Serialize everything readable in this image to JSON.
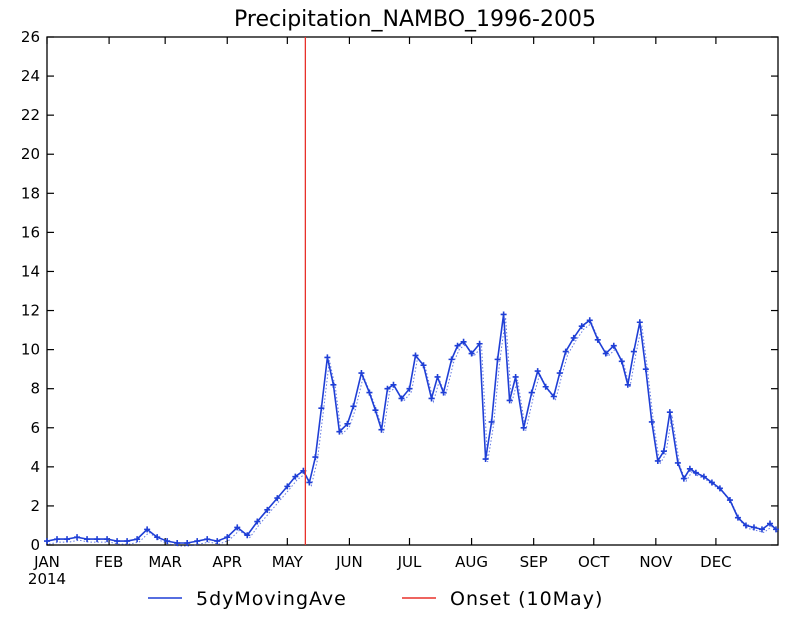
{
  "chart_data": {
    "type": "line",
    "title": "Precipitation_NAMBO_1996-2005",
    "xlabel": "",
    "ylabel": "",
    "ylim": [
      0,
      26
    ],
    "yticks": [
      0,
      2,
      4,
      6,
      8,
      10,
      12,
      14,
      16,
      18,
      20,
      22,
      24,
      26
    ],
    "xlim": [
      "2014-01-01",
      "2014-12-31"
    ],
    "x_tick_labels": [
      {
        "date": "2014-01-01",
        "label": "JAN"
      },
      {
        "date": "2014-02-01",
        "label": "FEB"
      },
      {
        "date": "2014-03-01",
        "label": "MAR"
      },
      {
        "date": "2014-04-01",
        "label": "APR"
      },
      {
        "date": "2014-05-01",
        "label": "MAY"
      },
      {
        "date": "2014-06-01",
        "label": "JUN"
      },
      {
        "date": "2014-07-01",
        "label": "JUL"
      },
      {
        "date": "2014-08-01",
        "label": "AUG"
      },
      {
        "date": "2014-09-01",
        "label": "SEP"
      },
      {
        "date": "2014-10-01",
        "label": "OCT"
      },
      {
        "date": "2014-11-01",
        "label": "NOV"
      },
      {
        "date": "2014-12-01",
        "label": "DEC"
      }
    ],
    "year_label": "2014",
    "grid": false,
    "legend_position": "bottom",
    "series": [
      {
        "name": "5dyMovingAve",
        "color": "#1f3fd6",
        "style": "line-with-plus-markers",
        "x": [
          "2014-01-01",
          "2014-01-06",
          "2014-01-11",
          "2014-01-16",
          "2014-01-21",
          "2014-01-26",
          "2014-01-31",
          "2014-02-05",
          "2014-02-10",
          "2014-02-15",
          "2014-02-20",
          "2014-02-25",
          "2014-03-02",
          "2014-03-07",
          "2014-03-12",
          "2014-03-17",
          "2014-03-22",
          "2014-03-27",
          "2014-04-01",
          "2014-04-06",
          "2014-04-11",
          "2014-04-16",
          "2014-04-21",
          "2014-04-26",
          "2014-05-01",
          "2014-05-05",
          "2014-05-09",
          "2014-05-12",
          "2014-05-15",
          "2014-05-18",
          "2014-05-21",
          "2014-05-24",
          "2014-05-27",
          "2014-05-31",
          "2014-06-03",
          "2014-06-07",
          "2014-06-11",
          "2014-06-14",
          "2014-06-17",
          "2014-06-20",
          "2014-06-23",
          "2014-06-27",
          "2014-07-01",
          "2014-07-04",
          "2014-07-08",
          "2014-07-12",
          "2014-07-15",
          "2014-07-18",
          "2014-07-22",
          "2014-07-25",
          "2014-07-28",
          "2014-08-01",
          "2014-08-05",
          "2014-08-08",
          "2014-08-11",
          "2014-08-14",
          "2014-08-17",
          "2014-08-20",
          "2014-08-23",
          "2014-08-27",
          "2014-08-31",
          "2014-09-03",
          "2014-09-07",
          "2014-09-11",
          "2014-09-14",
          "2014-09-17",
          "2014-09-21",
          "2014-09-25",
          "2014-09-29",
          "2014-10-03",
          "2014-10-07",
          "2014-10-11",
          "2014-10-15",
          "2014-10-18",
          "2014-10-21",
          "2014-10-24",
          "2014-10-27",
          "2014-10-30",
          "2014-11-02",
          "2014-11-05",
          "2014-11-08",
          "2014-11-12",
          "2014-11-15",
          "2014-11-18",
          "2014-11-21",
          "2014-11-25",
          "2014-11-29",
          "2014-12-03",
          "2014-12-08",
          "2014-12-12",
          "2014-12-16",
          "2014-12-20",
          "2014-12-24",
          "2014-12-28",
          "2014-12-31"
        ],
        "values": [
          0.2,
          0.3,
          0.3,
          0.4,
          0.3,
          0.3,
          0.3,
          0.2,
          0.2,
          0.3,
          0.8,
          0.4,
          0.2,
          0.1,
          0.1,
          0.2,
          0.3,
          0.2,
          0.4,
          0.9,
          0.5,
          1.2,
          1.8,
          2.4,
          3.0,
          3.5,
          3.8,
          3.2,
          4.5,
          7.0,
          9.6,
          8.2,
          5.8,
          6.2,
          7.1,
          8.8,
          7.8,
          6.9,
          5.9,
          8.0,
          8.2,
          7.5,
          8.0,
          9.7,
          9.2,
          7.5,
          8.6,
          7.8,
          9.5,
          10.2,
          10.4,
          9.8,
          10.3,
          4.4,
          6.3,
          9.5,
          11.8,
          7.4,
          8.6,
          6.0,
          7.8,
          8.9,
          8.1,
          7.6,
          8.8,
          9.9,
          10.6,
          11.2,
          11.5,
          10.5,
          9.8,
          10.2,
          9.4,
          8.2,
          9.9,
          11.4,
          9.0,
          6.3,
          4.3,
          4.8,
          6.8,
          4.2,
          3.4,
          3.9,
          3.7,
          3.5,
          3.2,
          2.9,
          2.3,
          1.4,
          1.0,
          0.9,
          0.8,
          1.1,
          0.8
        ]
      },
      {
        "name": "Onset (10May)",
        "color": "#e8312a",
        "style": "vertical-line",
        "x": [
          "2014-05-10"
        ]
      }
    ]
  }
}
